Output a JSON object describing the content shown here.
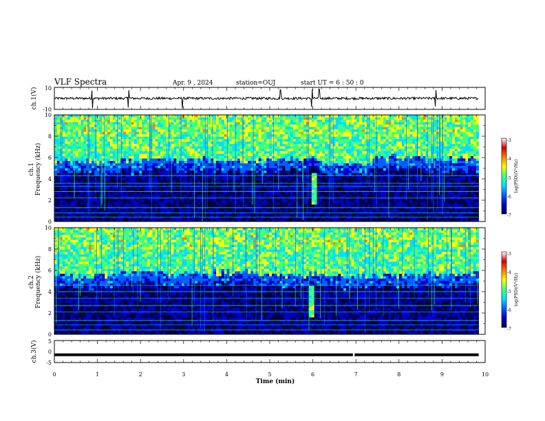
{
  "header": {
    "title": "VLF Spectra",
    "date": "Apr. 9  , 2024",
    "station": "station=OUJ",
    "start": "start  UT =  6 : 50 : 0"
  },
  "chart_data": [
    {
      "type": "line",
      "name": "ch1-waveform",
      "ylabel": "ch.1(V)",
      "ylim": [
        -10,
        10
      ],
      "y_ticks": [
        "10",
        "-10"
      ],
      "xlim": [
        0,
        10
      ],
      "baseline": 0,
      "spike_times_min": [
        0.88,
        1.72,
        2.97,
        5.25,
        5.98,
        6.15,
        8.85
      ]
    },
    {
      "type": "heatmap",
      "name": "ch1-spectrogram",
      "ylabel": "Frequency  (kHz)",
      "channel_label": "ch.1",
      "xlim": [
        0,
        10
      ],
      "ylim": [
        0,
        10
      ],
      "y_ticks": [
        "0",
        "2",
        "4",
        "6",
        "8",
        "10"
      ],
      "data_end_min": 9.85,
      "background_cutoff_khz": [
        5.6,
        5.7,
        5.8,
        5.6,
        5.9,
        5.5,
        6.0,
        5.8
      ],
      "noise_lines_khz": [
        0.4,
        0.8,
        1.3,
        2.2,
        2.8,
        3.3,
        3.6,
        4.3
      ],
      "event": {
        "time_min": 6.05,
        "freq_range_khz": [
          1.5,
          4.5
        ]
      },
      "colorbar": {
        "label": "log(PSD)(V²/Hz)",
        "ticks": [
          "-3",
          "-4",
          "-5",
          "-6",
          "-7"
        ],
        "range": [
          -7,
          -3
        ],
        "colors": [
          "#000040",
          "#0000c8",
          "#0060ff",
          "#00e0ff",
          "#40ff80",
          "#ffff00",
          "#ff8000",
          "#d00000",
          "#ffffff"
        ]
      }
    },
    {
      "type": "heatmap",
      "name": "ch2-spectrogram",
      "ylabel": "Frequency  (kHz)",
      "channel_label": "ch.2",
      "xlim": [
        0,
        10
      ],
      "ylim": [
        0,
        10
      ],
      "y_ticks": [
        "0",
        "2",
        "4",
        "6",
        "8",
        "10"
      ],
      "data_end_min": 9.85,
      "background_cutoff_khz": [
        5.5,
        5.7,
        5.6,
        5.8,
        5.6,
        5.4,
        5.5,
        5.6
      ],
      "noise_lines_khz": [
        0.4,
        0.9,
        1.3,
        2.1,
        2.7,
        3.4,
        4.0,
        4.6
      ],
      "event": {
        "time_min": 6.0,
        "freq_range_khz": [
          1.5,
          4.5
        ]
      },
      "colorbar": {
        "label": "log(PSD)(V²/Hz)",
        "ticks": [
          "-3",
          "-4",
          "-5",
          "-6",
          "-7"
        ],
        "range": [
          -7,
          -3
        ],
        "colors": [
          "#000040",
          "#0000c8",
          "#0060ff",
          "#00e0ff",
          "#40ff80",
          "#ffff00",
          "#ff8000",
          "#d00000",
          "#ffffff"
        ]
      }
    },
    {
      "type": "line",
      "name": "ch3-waveform",
      "ylabel": "ch.3(V)",
      "ylim": [
        -5,
        5
      ],
      "y_ticks": [
        "5",
        "0",
        "-5"
      ],
      "xlim": [
        0,
        10
      ],
      "level": -1.5,
      "gap_time_min": 6.95
    }
  ],
  "x_axis": {
    "label": "Time  (min)",
    "ticks": [
      "0",
      "1",
      "2",
      "3",
      "4",
      "5",
      "6",
      "7",
      "8",
      "9",
      "10"
    ]
  }
}
